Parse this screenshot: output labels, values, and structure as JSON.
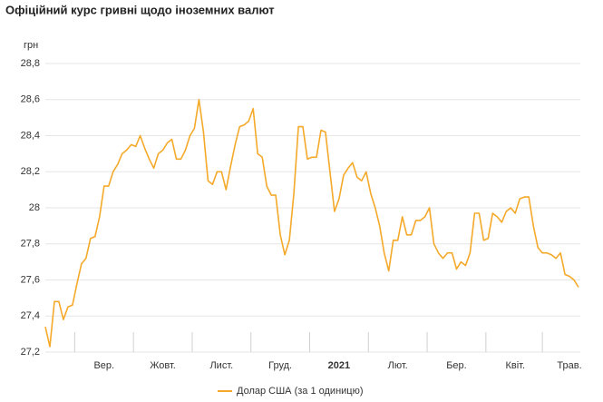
{
  "chart_data": {
    "type": "line",
    "title": "Офіційний курс гривні щодо іноземних валют",
    "y_axis_label": "грн",
    "categories": [
      null,
      null,
      null,
      null,
      null,
      null,
      null,
      null,
      null,
      null,
      null,
      null,
      null,
      "Вер.",
      null,
      null,
      null,
      null,
      null,
      null,
      null,
      null,
      null,
      null,
      null,
      null,
      "Жовт.",
      null,
      null,
      null,
      null,
      null,
      null,
      null,
      null,
      null,
      null,
      null,
      null,
      "Лист.",
      null,
      null,
      null,
      null,
      null,
      null,
      null,
      null,
      null,
      null,
      null,
      null,
      "Груд.",
      null,
      null,
      null,
      null,
      null,
      null,
      null,
      null,
      null,
      null,
      null,
      null,
      "2021",
      null,
      null,
      null,
      null,
      null,
      null,
      null,
      null,
      null,
      null,
      null,
      null,
      "Лют.",
      null,
      null,
      null,
      null,
      null,
      null,
      null,
      null,
      null,
      null,
      null,
      null,
      "Бер.",
      null,
      null,
      null,
      null,
      null,
      null,
      null,
      null,
      null,
      null,
      null,
      null,
      "Квіт.",
      null,
      null,
      null,
      null,
      null,
      null,
      null,
      null,
      null,
      null,
      null,
      "Трав.",
      null,
      null
    ],
    "series": [
      {
        "name": "Долар США (за 1 одиницю)",
        "color": "#f4a92a",
        "values": [
          27.34,
          27.23,
          27.48,
          27.48,
          27.38,
          27.45,
          27.46,
          27.58,
          27.69,
          27.72,
          27.83,
          27.84,
          27.95,
          28.12,
          28.12,
          28.2,
          28.24,
          28.3,
          28.32,
          28.35,
          28.34,
          28.4,
          28.33,
          28.27,
          28.22,
          28.3,
          28.32,
          28.36,
          28.38,
          28.27,
          28.27,
          28.32,
          28.4,
          28.44,
          28.6,
          28.42,
          28.15,
          28.13,
          28.2,
          28.2,
          28.1,
          28.23,
          28.35,
          28.45,
          28.46,
          28.48,
          28.55,
          28.3,
          28.28,
          28.12,
          28.07,
          28.07,
          27.85,
          27.74,
          27.82,
          28.08,
          28.45,
          28.45,
          28.27,
          28.28,
          28.28,
          28.43,
          28.42,
          28.2,
          27.98,
          28.05,
          28.18,
          28.22,
          28.25,
          28.17,
          28.15,
          28.2,
          28.08,
          28.0,
          27.9,
          27.75,
          27.65,
          27.82,
          27.82,
          27.95,
          27.85,
          27.85,
          27.93,
          27.93,
          27.95,
          28.0,
          27.8,
          27.75,
          27.72,
          27.75,
          27.75,
          27.66,
          27.7,
          27.68,
          27.75,
          27.97,
          27.97,
          27.82,
          27.83,
          27.97,
          27.95,
          27.92,
          27.98,
          28.0,
          27.97,
          28.05,
          28.06,
          28.06,
          27.9,
          27.78,
          27.75,
          27.75,
          27.74,
          27.72,
          27.75,
          27.63,
          27.62,
          27.6,
          27.56
        ]
      }
    ],
    "ylim": [
      27.2,
      28.8
    ],
    "yticks": [
      {
        "value": 27.2,
        "label": "27,2"
      },
      {
        "value": 27.4,
        "label": "27,4"
      },
      {
        "value": 27.6,
        "label": "27,6"
      },
      {
        "value": 27.8,
        "label": "27,8"
      },
      28,
      {
        "value": 28.2,
        "label": "28,2"
      },
      {
        "value": 28.4,
        "label": "28,4"
      },
      {
        "value": 28.6,
        "label": "28,6"
      },
      {
        "value": 28.8,
        "label": "28,8"
      }
    ],
    "grid": true,
    "legend": "bottom"
  }
}
